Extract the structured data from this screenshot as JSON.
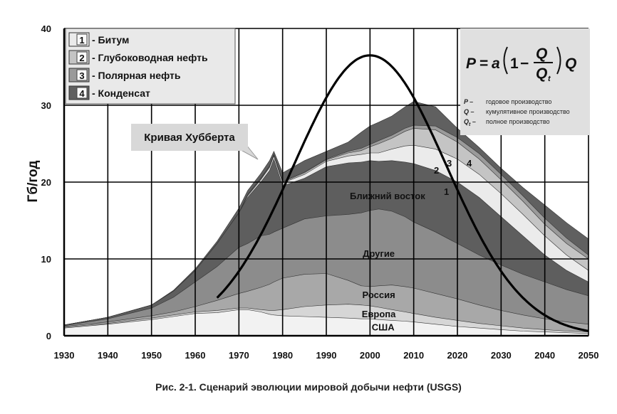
{
  "chart_data": {
    "type": "area",
    "ylabel": "Гб/год",
    "xlim": [
      1930,
      2050
    ],
    "ylim": [
      0,
      40
    ],
    "grid": true,
    "xticks": [
      "1930",
      "1940",
      "1950",
      "1960",
      "1970",
      "1980",
      "1990",
      "2000",
      "2010",
      "2020",
      "2030",
      "2040",
      "2050"
    ],
    "yticks": [
      "0",
      "10",
      "20",
      "30",
      "40"
    ],
    "x": [
      1930,
      1940,
      1950,
      1955,
      1960,
      1965,
      1970,
      1972,
      1975,
      1977,
      1978,
      1980,
      1985,
      1990,
      1995,
      1998,
      2000,
      2002,
      2005,
      2008,
      2010,
      2015,
      2020,
      2025,
      2030,
      2035,
      2040,
      2045,
      2050
    ],
    "layers": [
      {
        "name": "США",
        "top": [
          1.0,
          1.5,
          2.1,
          2.5,
          2.9,
          3.0,
          3.4,
          3.4,
          3.1,
          2.8,
          2.7,
          2.6,
          2.5,
          2.4,
          2.3,
          2.2,
          2.2,
          2.1,
          2.0,
          1.9,
          1.8,
          1.5,
          1.2,
          1.0,
          0.8,
          0.6,
          0.5,
          0.4,
          0.3
        ]
      },
      {
        "name": "Европа",
        "top": [
          1.1,
          1.6,
          2.3,
          2.7,
          3.1,
          3.3,
          3.6,
          3.6,
          3.4,
          3.3,
          3.3,
          3.4,
          3.8,
          4.0,
          4.1,
          4.0,
          3.9,
          3.7,
          3.4,
          3.1,
          2.9,
          2.4,
          2.0,
          1.6,
          1.3,
          1.0,
          0.8,
          0.6,
          0.5
        ]
      },
      {
        "name": "Россия",
        "top": [
          1.2,
          1.8,
          2.6,
          3.1,
          3.8,
          4.6,
          5.5,
          5.8,
          6.3,
          6.7,
          7.0,
          7.5,
          8.0,
          8.1,
          7.2,
          6.5,
          6.4,
          6.5,
          6.6,
          6.4,
          6.2,
          5.5,
          4.8,
          4.0,
          3.3,
          2.7,
          2.2,
          1.8,
          1.5
        ]
      },
      {
        "name": "Другие",
        "top": [
          1.3,
          2.2,
          3.6,
          5.0,
          7.0,
          9.0,
          11.5,
          12.0,
          13.0,
          13.2,
          13.5,
          14.0,
          15.2,
          15.6,
          15.8,
          16.0,
          16.3,
          16.5,
          16.2,
          15.5,
          14.8,
          13.5,
          12.0,
          10.5,
          9.2,
          8.0,
          7.0,
          6.0,
          5.2
        ]
      },
      {
        "name": "Ближний восток",
        "top": [
          1.4,
          2.4,
          4.0,
          5.8,
          8.5,
          12.0,
          16.0,
          18.0,
          20.0,
          21.5,
          23.0,
          19.5,
          20.5,
          22.0,
          22.5,
          22.6,
          22.8,
          22.7,
          22.8,
          22.6,
          22.4,
          21.5,
          20.0,
          18.0,
          15.5,
          13.0,
          10.5,
          8.5,
          7.0
        ]
      },
      {
        "name": "Битум",
        "top": [
          1.4,
          2.4,
          4.0,
          5.8,
          8.5,
          12.0,
          16.0,
          18.2,
          20.3,
          21.9,
          23.4,
          19.9,
          21.0,
          22.7,
          23.4,
          23.6,
          23.8,
          23.8,
          24.3,
          24.7,
          24.8,
          24.3,
          23.0,
          21.0,
          18.5,
          15.8,
          13.0,
          10.5,
          8.5
        ]
      },
      {
        "name": "Глубоководная нефть",
        "top": [
          1.4,
          2.4,
          4.0,
          5.8,
          8.5,
          12.0,
          16.0,
          18.3,
          20.4,
          22.0,
          23.5,
          20.0,
          21.2,
          22.9,
          23.8,
          24.1,
          24.6,
          25.0,
          25.7,
          26.6,
          27.0,
          26.8,
          25.2,
          23.0,
          20.3,
          17.5,
          14.5,
          12.0,
          10.0
        ]
      },
      {
        "name": "Полярная нефть",
        "top": [
          1.4,
          2.4,
          4.0,
          5.8,
          8.5,
          12.0,
          16.0,
          18.4,
          20.5,
          22.1,
          23.6,
          20.1,
          21.3,
          23.0,
          24.0,
          24.4,
          24.9,
          25.4,
          26.1,
          27.0,
          27.4,
          27.3,
          25.8,
          23.7,
          21.0,
          18.2,
          15.3,
          12.7,
          10.5
        ]
      },
      {
        "name": "Конденсат",
        "top": [
          1.4,
          2.4,
          4.0,
          5.9,
          8.7,
          12.3,
          16.6,
          18.9,
          21.1,
          22.8,
          24.0,
          21.2,
          22.8,
          24.0,
          25.2,
          26.5,
          27.3,
          27.8,
          28.6,
          29.8,
          30.5,
          29.8,
          27.0,
          24.5,
          21.8,
          19.3,
          17.0,
          14.7,
          12.6
        ]
      }
    ],
    "layer_colors": [
      "#f2f2f2",
      "#d6d6d6",
      "#a8a8a8",
      "#8c8c8c",
      "#5e5e5e",
      "#ebebeb",
      "#c4c4c4",
      "#9a9a9a",
      "#606060"
    ],
    "hubbert_curve": {
      "peak_year": 2000,
      "peak_value": 36.5,
      "sigma_years": 17.5
    },
    "region_labels": [
      "США",
      "Европа",
      "Россия",
      "Другие",
      "Ближний восток"
    ],
    "legend": {
      "position": "top-left",
      "items": [
        {
          "num": "1",
          "label": "- Битум",
          "color": "#ebebeb"
        },
        {
          "num": "2",
          "label": "- Глубоководная нефть",
          "color": "#c4c4c4"
        },
        {
          "num": "3",
          "label": "- Полярная нефть",
          "color": "#9a9a9a"
        },
        {
          "num": "4",
          "label": "- Конденсат",
          "color": "#606060"
        }
      ]
    },
    "annotations": {
      "hubbert_label": "Кривая Хубберта",
      "layer_numbers": [
        "1",
        "2",
        "3",
        "4"
      ]
    },
    "formula": {
      "definitions": [
        {
          "sym": "P –",
          "text": "годовое производство"
        },
        {
          "sym": "Q –",
          "text": "кумулятивное производство"
        },
        {
          "sym": "Q",
          "sub": "t",
          "dash": " –",
          "text": "полное производство"
        }
      ]
    }
  },
  "caption": "Рис. 2-1. Сценарий эволюции мировой добычи нефти (USGS)"
}
